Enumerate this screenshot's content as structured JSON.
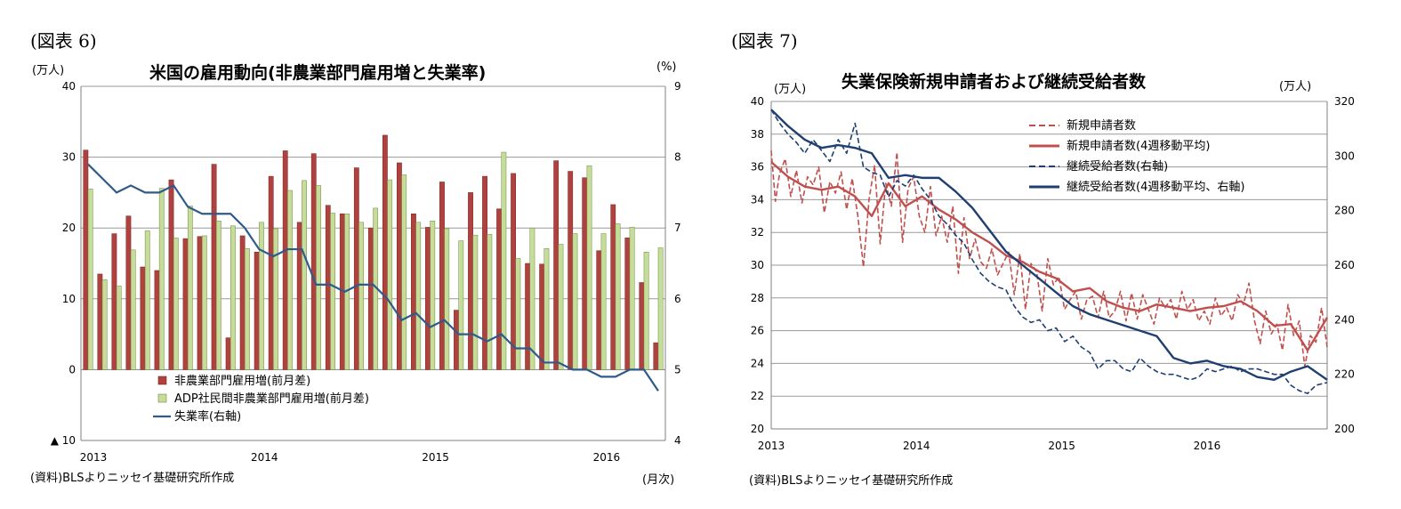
{
  "figure6": {
    "label": "(図表 6)",
    "title": "米国の雇用動向(非農業部門雇用増と失業率)",
    "left_unit": "(万人)",
    "right_unit": "(%)",
    "x_unit": "(月次)",
    "source": "(資料)BLSよりニッセイ基礎研究所作成",
    "chart_data": {
      "type": "bar",
      "left_axis": {
        "min": -10,
        "max": 40,
        "ticks": [
          40,
          30,
          20,
          10,
          0
        ],
        "bottom_tick_label": "▲ 10"
      },
      "right_axis": {
        "min": 4,
        "max": 9,
        "ticks": [
          9,
          8,
          7,
          6,
          5,
          4
        ]
      },
      "x_labels": [
        "2013",
        "2014",
        "2015",
        "2016"
      ],
      "grid": true,
      "legend_position": "bottom-left",
      "series": [
        {
          "name": "非農業部門雇用増(前月差)",
          "color": "#b0413e",
          "values": [
            31.0,
            13.5,
            19.2,
            21.7,
            14.5,
            14.0,
            26.8,
            18.5,
            18.8,
            29.0,
            4.5,
            18.9,
            16.6,
            27.3,
            30.9,
            20.8,
            30.5,
            23.2,
            22.0,
            28.5,
            20.0,
            33.1,
            29.2,
            22.0,
            20.1,
            26.5,
            8.4,
            25.0,
            27.3,
            22.7,
            27.7,
            15.0,
            14.9,
            29.5,
            28.0,
            27.1,
            16.8,
            23.3,
            18.6,
            12.3,
            3.8
          ]
        },
        {
          "name": "ADP社民間非農業部門雇用増(前月差)",
          "color": "#c6dc9a",
          "values": [
            25.5,
            12.7,
            11.8,
            16.9,
            19.6,
            25.6,
            18.6,
            23.1,
            18.9,
            21.0,
            20.3,
            17.1,
            20.8,
            19.9,
            25.3,
            26.7,
            26.0,
            22.1,
            22.0,
            20.8,
            22.8,
            26.8,
            27.5,
            20.8,
            21.0,
            19.9,
            18.2,
            19.0,
            19.1,
            30.7,
            15.7,
            20.0,
            17.1,
            17.7,
            19.2,
            28.8,
            19.2,
            20.6,
            20.1,
            16.6,
            17.2
          ]
        },
        {
          "name": "失業率(右軸)",
          "color": "#2f5a8a",
          "values": [
            7.9,
            7.7,
            7.5,
            7.6,
            7.5,
            7.5,
            7.6,
            7.3,
            7.2,
            7.2,
            7.2,
            7.0,
            6.7,
            6.6,
            6.7,
            6.7,
            6.2,
            6.2,
            6.1,
            6.2,
            6.2,
            6.0,
            5.7,
            5.8,
            5.6,
            5.7,
            5.5,
            5.5,
            5.4,
            5.5,
            5.3,
            5.3,
            5.1,
            5.1,
            5.0,
            5.0,
            4.9,
            4.9,
            5.0,
            5.0,
            4.7
          ]
        }
      ]
    }
  },
  "figure7": {
    "label": "(図表 7)",
    "title": "失業保険新規申請者および継続受給者数",
    "left_unit": "(万人)",
    "right_unit": "(万人)",
    "source": "(資料)BLSよりニッセイ基礎研究所作成",
    "chart_data": {
      "type": "line",
      "left_axis": {
        "min": 20,
        "max": 40,
        "ticks": [
          40,
          38,
          36,
          34,
          32,
          30,
          28,
          26,
          24,
          22,
          20
        ]
      },
      "right_axis": {
        "min": 200,
        "max": 320,
        "ticks": [
          320,
          300,
          280,
          260,
          240,
          220,
          200
        ]
      },
      "x_labels": [
        "2013",
        "2014",
        "2015",
        "2016"
      ],
      "grid": true,
      "legend_position": "top-right",
      "series": [
        {
          "name": "新規申請者数",
          "axis": "left",
          "color": "#c0504d",
          "dash": true,
          "x": [
            0,
            1.5,
            3,
            5,
            7,
            9,
            11,
            13,
            15,
            17,
            19,
            21,
            23,
            25,
            27,
            29,
            31,
            33,
            35,
            37,
            39,
            41,
            43,
            45,
            47,
            49,
            51,
            53,
            55,
            57,
            59,
            61,
            63,
            65,
            67,
            69,
            71,
            73,
            75,
            77,
            79,
            81,
            83,
            85,
            87,
            89,
            91,
            93,
            95,
            97,
            99,
            101,
            103,
            105,
            107,
            109,
            111,
            113,
            115,
            117,
            119,
            121,
            123,
            125,
            127,
            129,
            131,
            133,
            135,
            137,
            139,
            141,
            143,
            145,
            147,
            149,
            151,
            153,
            155,
            157,
            159,
            161,
            163,
            165,
            167,
            169,
            171,
            173,
            175,
            177,
            179,
            181,
            183,
            185,
            187,
            189,
            191,
            193,
            195,
            197,
            199
          ],
          "y": [
            37.0,
            33.9,
            35.6,
            36.5,
            34.2,
            35.8,
            33.8,
            35.4,
            34.9,
            36.0,
            33.2,
            35.1,
            34.4,
            35.7,
            33.4,
            35.3,
            33.0,
            29.9,
            34.0,
            36.1,
            31.3,
            35.0,
            33.6,
            36.9,
            31.4,
            34.7,
            35.4,
            33.0,
            32.0,
            34.8,
            31.8,
            33.0,
            31.4,
            33.6,
            29.5,
            32.9,
            30.4,
            31.6,
            30.2,
            29.8,
            31.0,
            29.4,
            30.1,
            30.8,
            28.2,
            30.7,
            27.3,
            30.1,
            29.6,
            27.2,
            30.4,
            28.8,
            29.3,
            27.3,
            27.9,
            28.4,
            26.7,
            27.9,
            28.1,
            26.8,
            28.4,
            26.8,
            27.2,
            28.4,
            26.6,
            28.3,
            26.7,
            28.2,
            27.3,
            26.4,
            28.0,
            27.4,
            27.9,
            26.7,
            28.4,
            27.3,
            27.9,
            26.6,
            27.2,
            26.4,
            28.0,
            26.9,
            27.4,
            26.6,
            28.2,
            27.6,
            28.9,
            26.6,
            25.2,
            27.2,
            25.8,
            26.4,
            24.8,
            27.6,
            25.7,
            26.6,
            23.8,
            25.7,
            25.3,
            27.4,
            25.0
          ]
        },
        {
          "name": "新規申請者数(4週移動平均)",
          "axis": "left",
          "color": "#c0504d",
          "dash": false,
          "x": [
            0,
            6,
            12,
            18,
            24,
            30,
            36,
            42,
            48,
            54,
            60,
            66,
            72,
            78,
            84,
            90,
            96,
            102,
            108,
            114,
            120,
            126,
            132,
            138,
            144,
            150,
            156,
            162,
            168,
            174,
            180,
            186,
            192,
            199
          ],
          "y": [
            36.3,
            35.4,
            34.8,
            34.6,
            34.8,
            34.2,
            33.0,
            35.0,
            33.6,
            34.2,
            33.4,
            32.8,
            32.0,
            31.4,
            30.6,
            30.2,
            29.6,
            29.2,
            28.4,
            28.6,
            27.8,
            27.4,
            27.2,
            27.6,
            27.4,
            27.2,
            27.4,
            27.5,
            27.8,
            27.2,
            26.3,
            26.4,
            24.8,
            26.8
          ]
        },
        {
          "name": "継続受給者数(右軸)",
          "axis": "right",
          "color": "#1f3f72",
          "dash": true,
          "x": [
            0,
            3,
            6,
            9,
            12,
            15,
            18,
            21,
            24,
            27,
            30,
            33,
            36,
            39,
            42,
            45,
            48,
            51,
            54,
            57,
            60,
            63,
            66,
            69,
            72,
            75,
            78,
            81,
            84,
            87,
            90,
            93,
            96,
            99,
            102,
            105,
            108,
            111,
            114,
            117,
            120,
            123,
            126,
            129,
            132,
            135,
            138,
            141,
            144,
            147,
            150,
            153,
            156,
            159,
            162,
            165,
            168,
            171,
            174,
            177,
            180,
            183,
            186,
            189,
            192,
            195,
            199
          ],
          "y": [
            317,
            312,
            308,
            305,
            301,
            306,
            302,
            298,
            306,
            301,
            312,
            296,
            294,
            293,
            285,
            291,
            289,
            293,
            288,
            284,
            278,
            275,
            271,
            268,
            262,
            257,
            254,
            252,
            251,
            245,
            241,
            239,
            240,
            236,
            237,
            232,
            234,
            230,
            228,
            222,
            225,
            225,
            222,
            221,
            226,
            223,
            221,
            220,
            220,
            219,
            218,
            219,
            222,
            221,
            222,
            223,
            221,
            222,
            222,
            221,
            220,
            220,
            216,
            214,
            213,
            216,
            217
          ]
        },
        {
          "name": "継続受給者数(4週移動平均、右軸)",
          "axis": "right",
          "color": "#1f3f72",
          "dash": false,
          "x": [
            0,
            6,
            12,
            18,
            24,
            30,
            36,
            42,
            48,
            54,
            60,
            66,
            72,
            78,
            84,
            90,
            96,
            102,
            108,
            114,
            120,
            126,
            132,
            138,
            144,
            150,
            156,
            162,
            168,
            174,
            180,
            186,
            192,
            199
          ],
          "y": [
            317,
            311,
            306,
            303,
            304,
            303,
            301,
            292,
            293,
            292,
            292,
            287,
            281,
            273,
            265,
            260,
            255,
            250,
            245,
            242,
            240,
            238,
            236,
            234,
            226,
            224,
            225,
            223,
            222,
            219,
            218,
            221,
            223,
            218
          ]
        }
      ]
    }
  }
}
